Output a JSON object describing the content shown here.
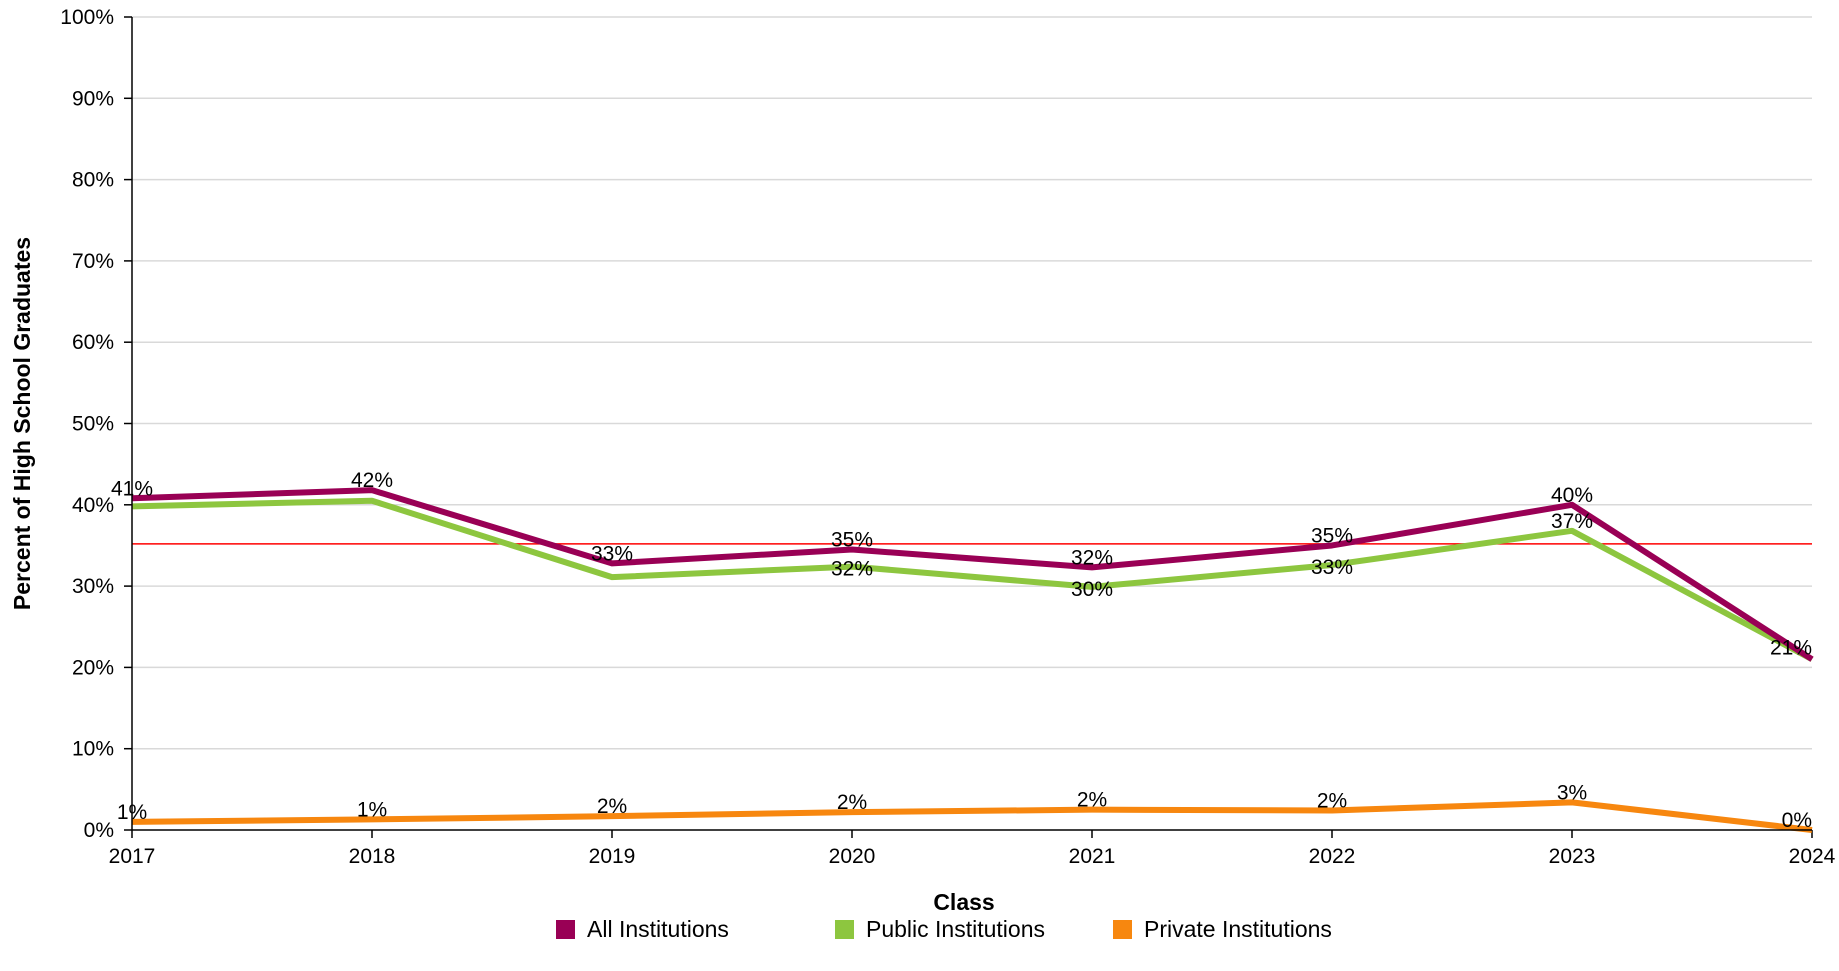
{
  "chart_data": {
    "type": "line",
    "title": "",
    "xlabel": "Class",
    "ylabel": "Percent of High School Graduates",
    "x": [
      "2017",
      "2018",
      "2019",
      "2020",
      "2021",
      "2022",
      "2023",
      "2024"
    ],
    "ylim": [
      0,
      100
    ],
    "yticks": [
      "0%",
      "10%",
      "20%",
      "30%",
      "40%",
      "50%",
      "60%",
      "70%",
      "80%",
      "90%",
      "100%"
    ],
    "grid": true,
    "legend_position": "bottom",
    "reference_line": {
      "y": 35.2,
      "color": "#ff0000"
    },
    "series": [
      {
        "name": "All Institutions",
        "color": "#990055",
        "values": [
          40.8,
          41.8,
          32.8,
          34.5,
          32.3,
          35.0,
          40.0,
          21.0
        ],
        "labels": [
          "41%",
          "42%",
          "33%",
          "35%",
          "32%",
          "35%",
          "40%",
          "21%"
        ]
      },
      {
        "name": "Public Institutions",
        "color": "#8dc63f",
        "values": [
          39.8,
          40.5,
          31.1,
          32.4,
          29.9,
          32.6,
          36.8,
          21.0
        ],
        "labels": [
          "",
          "",
          "",
          "32%",
          "30%",
          "33%",
          "37%",
          ""
        ]
      },
      {
        "name": "Private Institutions",
        "color": "#f7870f",
        "values": [
          1.0,
          1.3,
          1.7,
          2.2,
          2.5,
          2.4,
          3.4,
          0.0
        ],
        "labels": [
          "1%",
          "1%",
          "2%",
          "2%",
          "2%",
          "2%",
          "3%",
          "0%"
        ]
      }
    ]
  }
}
